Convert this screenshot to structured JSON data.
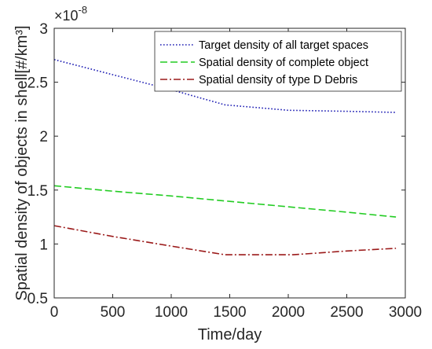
{
  "chart_data": {
    "type": "line",
    "title": "",
    "xlabel": "Time/day",
    "ylabel": "Spatial density of objects in shell[#/km³]",
    "xlim": [
      0,
      3000
    ],
    "ylim": [
      0.5,
      3
    ],
    "x_ticks": [
      0,
      500,
      1000,
      1500,
      2000,
      2500,
      3000
    ],
    "x_tick_labels": [
      "0",
      "500",
      "1000",
      "1500",
      "2000",
      "2500",
      "3000"
    ],
    "y_ticks": [
      0.5,
      1,
      1.5,
      2,
      2.5,
      3
    ],
    "y_tick_labels": [
      "0.5",
      "1",
      "1.5",
      "2",
      "2.5",
      "3"
    ],
    "y_exponent": {
      "base": "×10",
      "power": "-8"
    },
    "grid": false,
    "legend_position": "top-right",
    "series": [
      {
        "name": "Target density of all target spaces",
        "color": "#1f1fb4",
        "style": "dotted",
        "x": [
          0,
          500,
          1000,
          1460,
          2000,
          2500,
          2920
        ],
        "y": [
          2.71,
          2.57,
          2.43,
          2.29,
          2.24,
          2.23,
          2.22
        ]
      },
      {
        "name": "Spatial density of complete object",
        "color": "#22cc22",
        "style": "dashed",
        "x": [
          0,
          500,
          1000,
          1500,
          2000,
          2500,
          2920
        ],
        "y": [
          1.54,
          1.49,
          1.445,
          1.395,
          1.345,
          1.295,
          1.25
        ]
      },
      {
        "name": "Spatial density of type D Debris",
        "color": "#9b1a1a",
        "style": "dashdot",
        "x": [
          0,
          500,
          1000,
          1460,
          2040,
          2500,
          2920
        ],
        "y": [
          1.17,
          1.07,
          0.98,
          0.9,
          0.9,
          0.935,
          0.96
        ]
      }
    ]
  }
}
